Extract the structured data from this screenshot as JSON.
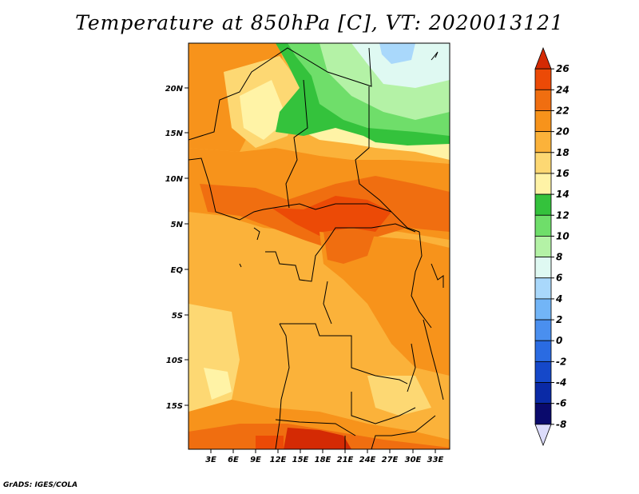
{
  "header": {
    "title": "Temperature at 850hPa [C], VT: 2020013121"
  },
  "footer": {
    "credit": "GrADS: IGES/COLA"
  },
  "map": {
    "lat_labels": [
      "20N",
      "15N",
      "10N",
      "5N",
      "EQ",
      "5S",
      "10S",
      "15S"
    ],
    "lon_labels": [
      "3E",
      "6E",
      "9E",
      "12E",
      "15E",
      "18E",
      "21E",
      "24E",
      "27E",
      "30E",
      "33E"
    ]
  },
  "legend": {
    "labels": [
      "26",
      "24",
      "22",
      "20",
      "18",
      "16",
      "14",
      "12",
      "10",
      "8",
      "6",
      "4",
      "2",
      "0",
      "-2",
      "-4",
      "-6",
      "-8"
    ],
    "colors": [
      "#d42a04",
      "#ec4a06",
      "#f06e10",
      "#f7931b",
      "#fbb23a",
      "#fdd873",
      "#fff3a6",
      "#34c23c",
      "#6fde6a",
      "#b4f2a6",
      "#dff9f2",
      "#a9d8fb",
      "#72b5f7",
      "#4a8fef",
      "#2a6be2",
      "#1548c9",
      "#0a2aa6",
      "#0a0a6c",
      "#dcdcfb"
    ]
  }
}
